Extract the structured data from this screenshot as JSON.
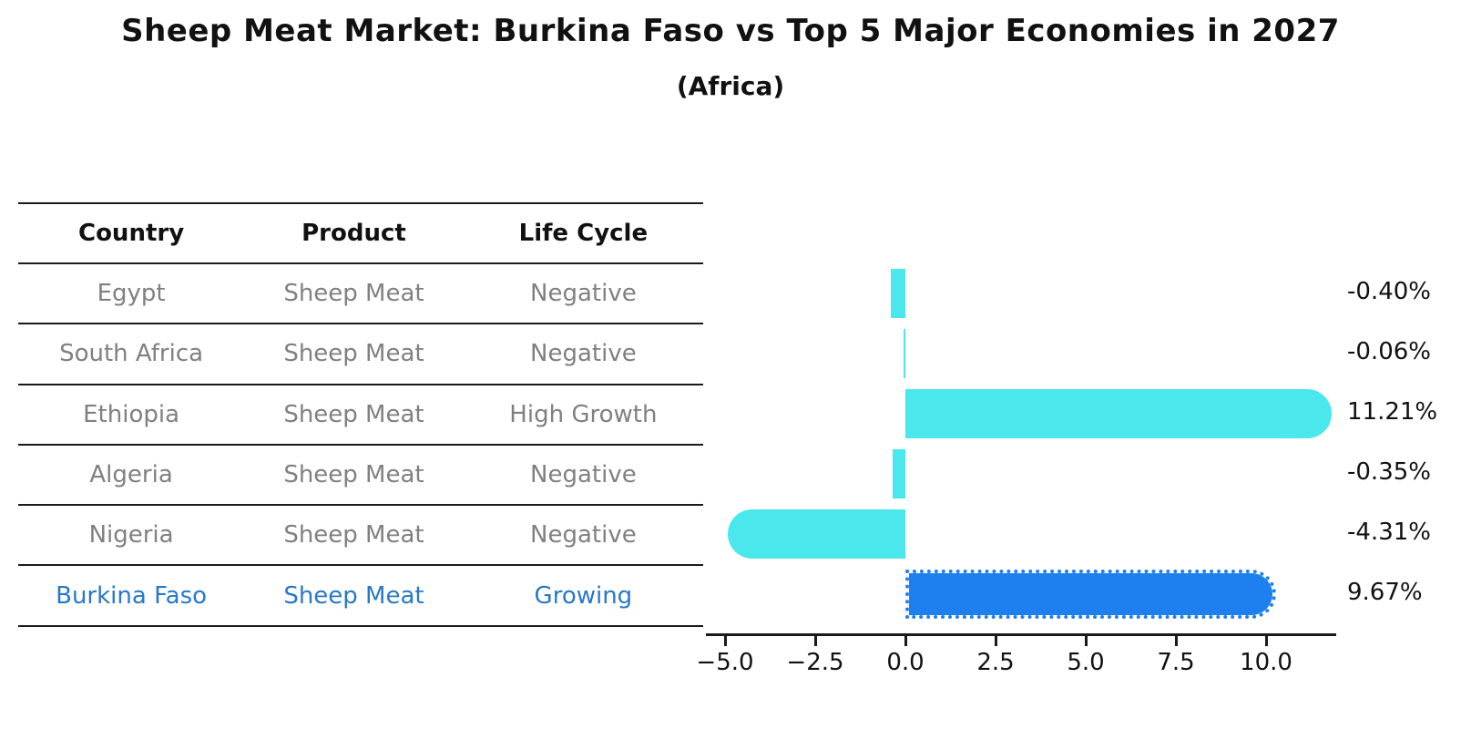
{
  "title": "Sheep Meat Market: Burkina Faso vs Top 5 Major Economies in 2027",
  "subtitle": "(Africa)",
  "table": {
    "headers": [
      "Country",
      "Product",
      "Life Cycle"
    ],
    "rows": [
      {
        "country": "Egypt",
        "product": "Sheep Meat",
        "life_cycle": "Negative",
        "highlight": false
      },
      {
        "country": "South Africa",
        "product": "Sheep Meat",
        "life_cycle": "Negative",
        "highlight": false
      },
      {
        "country": "Ethiopia",
        "product": "Sheep Meat",
        "life_cycle": "High Growth",
        "highlight": false
      },
      {
        "country": "Algeria",
        "product": "Sheep Meat",
        "life_cycle": "Negative",
        "highlight": false
      },
      {
        "country": "Nigeria",
        "product": "Sheep Meat",
        "life_cycle": "Negative",
        "highlight": false
      },
      {
        "country": "Burkina Faso",
        "product": "Sheep Meat",
        "life_cycle": "Growing",
        "highlight": true
      }
    ]
  },
  "chart_data": {
    "type": "bar",
    "orientation": "horizontal",
    "title": "Sheep Meat Market: Burkina Faso vs Top 5 Major Economies in 2027 (Africa)",
    "categories": [
      "Egypt",
      "South Africa",
      "Ethiopia",
      "Algeria",
      "Nigeria",
      "Burkina Faso"
    ],
    "values": [
      -0.4,
      -0.06,
      11.21,
      -0.35,
      -4.31,
      9.67
    ],
    "value_labels": [
      "-0.40%",
      "-0.06%",
      "11.21%",
      "-0.35%",
      "-4.31%",
      "9.67%"
    ],
    "highlight_index": 5,
    "x_ticks": [
      -5.0,
      -2.5,
      0.0,
      2.5,
      5.0,
      7.5,
      10.0
    ],
    "x_tick_labels": [
      "−5.0",
      "−2.5",
      "0.0",
      "2.5",
      "5.0",
      "7.5",
      "10.0"
    ],
    "xlim": [
      -5.55,
      11.95
    ],
    "grid": false,
    "legend": false,
    "unit": "%"
  },
  "colors": {
    "bar": "#4AE8EC",
    "bar_highlight": "#1E80EE",
    "table_text": "#808080",
    "table_highlight_text": "#2878C8",
    "heading_text": "#111111",
    "line": "#1a1a1a"
  }
}
